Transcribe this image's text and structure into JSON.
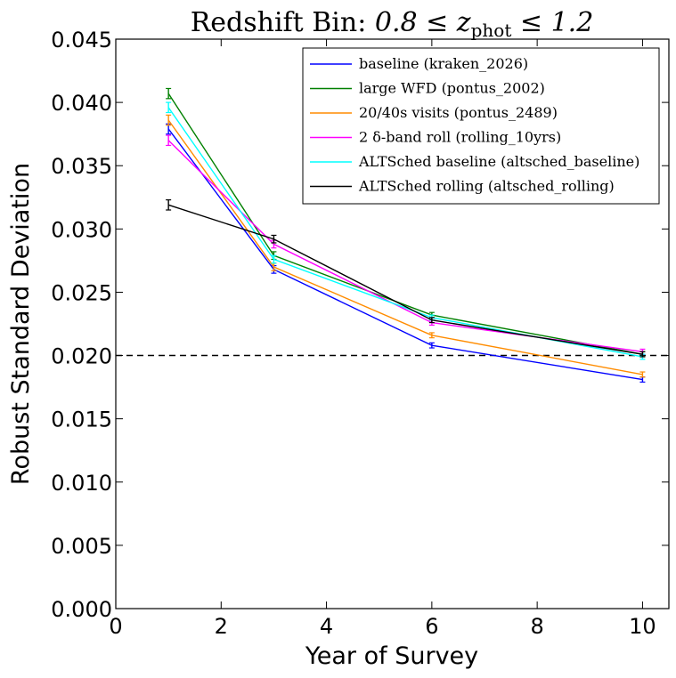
{
  "chart_data": {
    "type": "line",
    "title": "Redshift Bin: 0.8 ≤ z_phot ≤ 1.2",
    "title_parts": {
      "prefix": "Redshift Bin: ",
      "lower": "0.8 ≤ z",
      "subscript": "phot",
      "upper": " ≤ 1.2"
    },
    "xlabel": "Year of Survey",
    "ylabel": "Robust Standard Deviation",
    "xlim": [
      0,
      10.5
    ],
    "ylim": [
      0.0,
      0.045
    ],
    "xticks": [
      "0",
      "2",
      "4",
      "6",
      "8",
      "10"
    ],
    "xtick_values": [
      0,
      2,
      4,
      6,
      8,
      10
    ],
    "yticks": [
      "0.000",
      "0.005",
      "0.010",
      "0.015",
      "0.020",
      "0.025",
      "0.030",
      "0.035",
      "0.040",
      "0.045"
    ],
    "ytick_values": [
      0.0,
      0.005,
      0.01,
      0.015,
      0.02,
      0.025,
      0.03,
      0.035,
      0.04,
      0.045
    ],
    "grid": false,
    "legend_position": "top-right",
    "reference_line": {
      "y": 0.02,
      "style": "dashed",
      "color": "#000000"
    },
    "x": [
      1,
      3,
      6,
      10
    ],
    "series": [
      {
        "name": "baseline (kraken_2026)",
        "color": "#0000ff",
        "values": [
          0.0379,
          0.0268,
          0.0208,
          0.0181
        ],
        "errors": [
          0.0004,
          0.0003,
          0.0002,
          0.0002
        ]
      },
      {
        "name": "large WFD (pontus_2002)",
        "color": "#008000",
        "values": [
          0.0407,
          0.0279,
          0.0232,
          0.0201
        ],
        "errors": [
          0.0004,
          0.0003,
          0.0002,
          0.0002
        ]
      },
      {
        "name": "20/40s visits (pontus_2489)",
        "color": "#ff8c00",
        "values": [
          0.0386,
          0.027,
          0.0216,
          0.0185
        ],
        "errors": [
          0.0004,
          0.0003,
          0.0002,
          0.0002
        ]
      },
      {
        "name": "2 δ-band roll (rolling_10yrs)",
        "color": "#ff00ff",
        "values": [
          0.037,
          0.0288,
          0.0226,
          0.0203
        ],
        "errors": [
          0.0004,
          0.0003,
          0.0002,
          0.0002
        ]
      },
      {
        "name": "ALTSched baseline (altsched_baseline)",
        "color": "#00ffff",
        "values": [
          0.0396,
          0.0276,
          0.023,
          0.0199
        ],
        "errors": [
          0.0004,
          0.0003,
          0.0002,
          0.0002
        ]
      },
      {
        "name": "ALTSched rolling (altsched_rolling)",
        "color": "#000000",
        "values": [
          0.0319,
          0.0292,
          0.0228,
          0.0201
        ],
        "errors": [
          0.0004,
          0.0003,
          0.0002,
          0.0002
        ]
      }
    ]
  }
}
